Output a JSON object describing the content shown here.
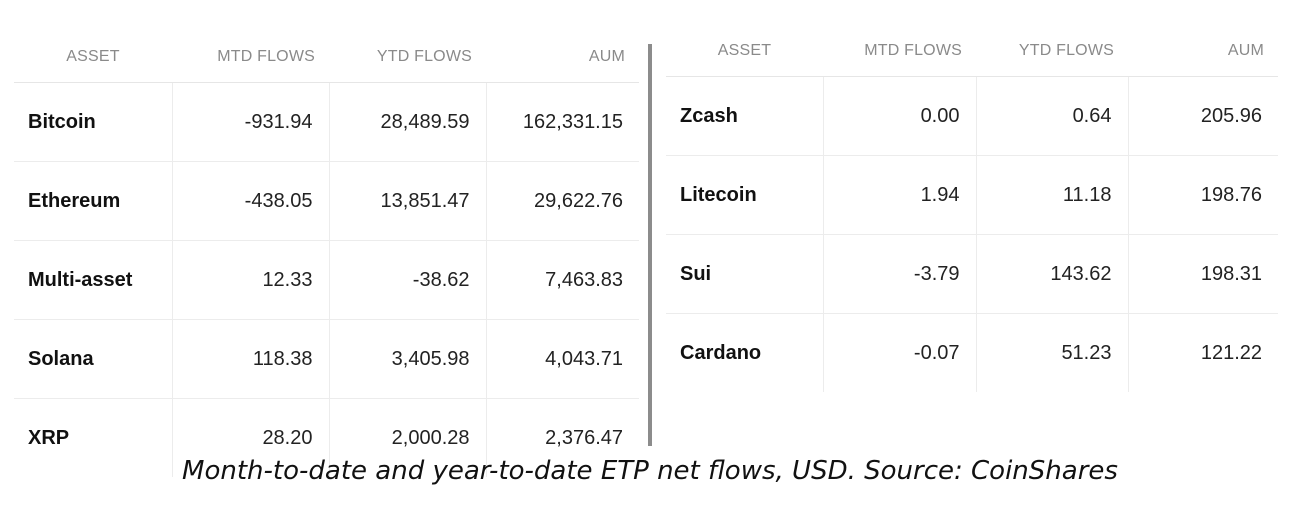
{
  "chart_data": [
    {
      "type": "table",
      "columns": [
        "ASSET",
        "MTD FLOWS",
        "YTD FLOWS",
        "AUM"
      ],
      "rows": [
        {
          "asset": "Bitcoin",
          "mtd": "-931.94",
          "ytd": "28,489.59",
          "aum": "162,331.15"
        },
        {
          "asset": "Ethereum",
          "mtd": "-438.05",
          "ytd": "13,851.47",
          "aum": "29,622.76"
        },
        {
          "asset": "Multi-asset",
          "mtd": "12.33",
          "ytd": "-38.62",
          "aum": "7,463.83"
        },
        {
          "asset": "Solana",
          "mtd": "118.38",
          "ytd": "3,405.98",
          "aum": "4,043.71"
        },
        {
          "asset": "XRP",
          "mtd": "28.20",
          "ytd": "2,000.28",
          "aum": "2,376.47"
        }
      ]
    },
    {
      "type": "table",
      "columns": [
        "ASSET",
        "MTD FLOWS",
        "YTD FLOWS",
        "AUM"
      ],
      "rows": [
        {
          "asset": "Zcash",
          "mtd": "0.00",
          "ytd": "0.64",
          "aum": "205.96"
        },
        {
          "asset": "Litecoin",
          "mtd": "1.94",
          "ytd": "11.18",
          "aum": "198.76"
        },
        {
          "asset": "Sui",
          "mtd": "-3.79",
          "ytd": "143.62",
          "aum": "198.31"
        },
        {
          "asset": "Cardano",
          "mtd": "-0.07",
          "ytd": "51.23",
          "aum": "121.22"
        }
      ]
    }
  ],
  "caption": "Month-to-date and year-to-date ETP net flows, USD. Source: CoinShares"
}
